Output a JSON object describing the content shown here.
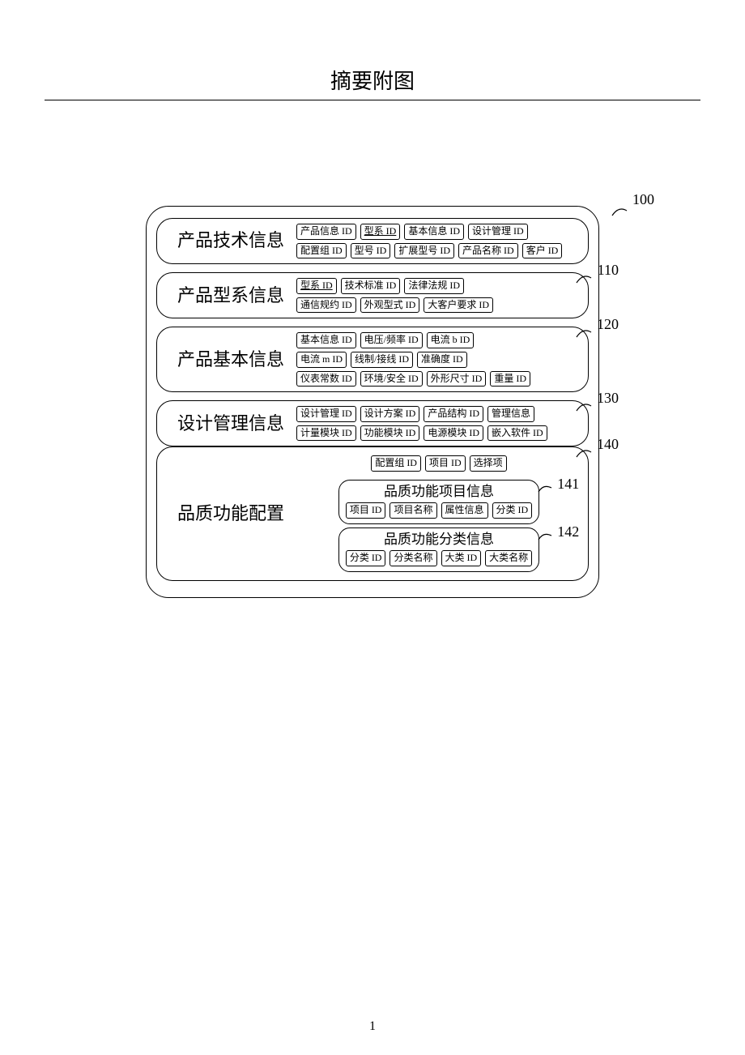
{
  "page": {
    "title": "摘要附图",
    "page_number": "1",
    "colors": {
      "background": "#ffffff",
      "stroke": "#000000",
      "text": "#000000"
    }
  },
  "refs": {
    "r100": "100",
    "r110": "110",
    "r120": "120",
    "r130": "130",
    "r140": "140",
    "r141": "141",
    "r142": "142"
  },
  "sections": [
    {
      "id": "product-tech-info",
      "label": "产品技术信息",
      "rows": [
        [
          {
            "text": "产品信息 ID",
            "underline": false
          },
          {
            "text": "型系 ID",
            "underline": true
          },
          {
            "text": "基本信息 ID",
            "underline": false
          },
          {
            "text": "设计管理 ID",
            "underline": false
          }
        ],
        [
          {
            "text": "配置组 ID",
            "underline": false
          },
          {
            "text": "型号 ID",
            "underline": false
          },
          {
            "text": "扩展型号 ID",
            "underline": false
          },
          {
            "text": "产品名称 ID",
            "underline": false
          },
          {
            "text": "客户 ID",
            "underline": false
          }
        ]
      ]
    },
    {
      "id": "product-series-info",
      "label": "产品型系信息",
      "rows": [
        [
          {
            "text": "型系 ID",
            "underline": true
          },
          {
            "text": "技术标准 ID",
            "underline": false
          },
          {
            "text": "法律法规 ID",
            "underline": false
          }
        ],
        [
          {
            "text": "通信规约 ID",
            "underline": false
          },
          {
            "text": "外观型式 ID",
            "underline": false
          },
          {
            "text": "大客户要求 ID",
            "underline": false
          }
        ]
      ]
    },
    {
      "id": "product-basic-info",
      "label": "产品基本信息",
      "rows": [
        [
          {
            "text": "基本信息 ID",
            "underline": false
          },
          {
            "text": "电压/频率 ID",
            "underline": false
          },
          {
            "text": "电流 b ID",
            "underline": false
          }
        ],
        [
          {
            "text": "电流 m ID",
            "underline": false
          },
          {
            "text": "线制/接线 ID",
            "underline": false
          },
          {
            "text": "准确度 ID",
            "underline": false
          }
        ],
        [
          {
            "text": "仪表常数 ID",
            "underline": false
          },
          {
            "text": "环境/安全 ID",
            "underline": false
          },
          {
            "text": "外形尺寸 ID",
            "underline": false
          },
          {
            "text": "重量 ID",
            "underline": false
          }
        ]
      ]
    },
    {
      "id": "design-mgmt-info",
      "label": "设计管理信息",
      "rows": [
        [
          {
            "text": "设计管理 ID",
            "underline": false
          },
          {
            "text": "设计方案 ID",
            "underline": false
          },
          {
            "text": "产品结构 ID",
            "underline": false
          },
          {
            "text": "管理信息",
            "underline": false
          }
        ],
        [
          {
            "text": "计量模块 ID",
            "underline": false
          },
          {
            "text": "功能模块 ID",
            "underline": false
          },
          {
            "text": "电源模块 ID",
            "underline": false
          },
          {
            "text": "嵌入软件 ID",
            "underline": false
          }
        ]
      ]
    }
  ],
  "quality_section": {
    "id": "quality-func-config",
    "label": "品质功能配置",
    "top_row": [
      {
        "text": "配置组 ID",
        "underline": false
      },
      {
        "text": "项目 ID",
        "underline": false
      },
      {
        "text": "选择项",
        "underline": false
      }
    ],
    "sub_blocks": [
      {
        "id": "quality-item-info",
        "title": "品质功能项目信息",
        "tags": [
          {
            "text": "项目 ID",
            "underline": false
          },
          {
            "text": "项目名称",
            "underline": false
          },
          {
            "text": "属性信息",
            "underline": false
          },
          {
            "text": "分类 ID",
            "underline": false
          }
        ],
        "ref": "141"
      },
      {
        "id": "quality-class-info",
        "title": "品质功能分类信息",
        "tags": [
          {
            "text": "分类 ID",
            "underline": false
          },
          {
            "text": "分类名称",
            "underline": false
          },
          {
            "text": "大类 ID",
            "underline": false
          },
          {
            "text": "大类名称",
            "underline": false
          }
        ],
        "ref": "142"
      }
    ]
  }
}
